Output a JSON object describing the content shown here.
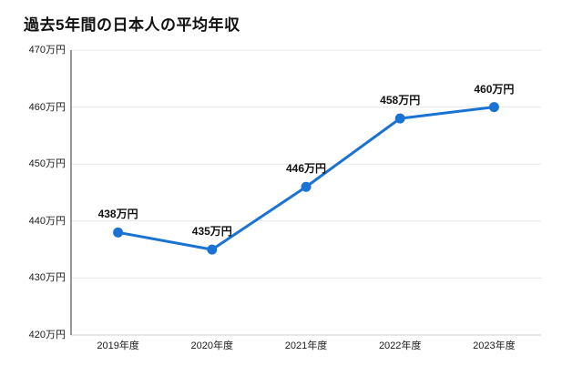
{
  "title": "過去5年間の日本人の平均年収",
  "chart_data": {
    "type": "line",
    "title": "過去5年間の日本人の平均年収",
    "categories": [
      "2019年度",
      "2020年度",
      "2021年度",
      "2022年度",
      "2023年度"
    ],
    "values": [
      438,
      435,
      446,
      458,
      460
    ],
    "value_labels": [
      "438万円",
      "435万円",
      "446万円",
      "458万円",
      "460万円"
    ],
    "unit": "万円",
    "y_ticks": [
      420,
      430,
      440,
      450,
      460,
      470
    ],
    "y_tick_labels": [
      "420万円",
      "430万円",
      "440万円",
      "450万円",
      "460万円",
      "470万円"
    ],
    "ylim": [
      420,
      470
    ],
    "xlabel": "",
    "ylabel": "",
    "legend": "none",
    "grid": "horizontal-only",
    "line_color": "#1a73d2",
    "marker": "circle"
  },
  "colors": {
    "background": "#ffffff",
    "line": "#1a73d2",
    "gridline": "#e7e7e7",
    "y_axis_line": "#757575",
    "x_axis_line": "#d0d0d0",
    "text": "#111111"
  }
}
